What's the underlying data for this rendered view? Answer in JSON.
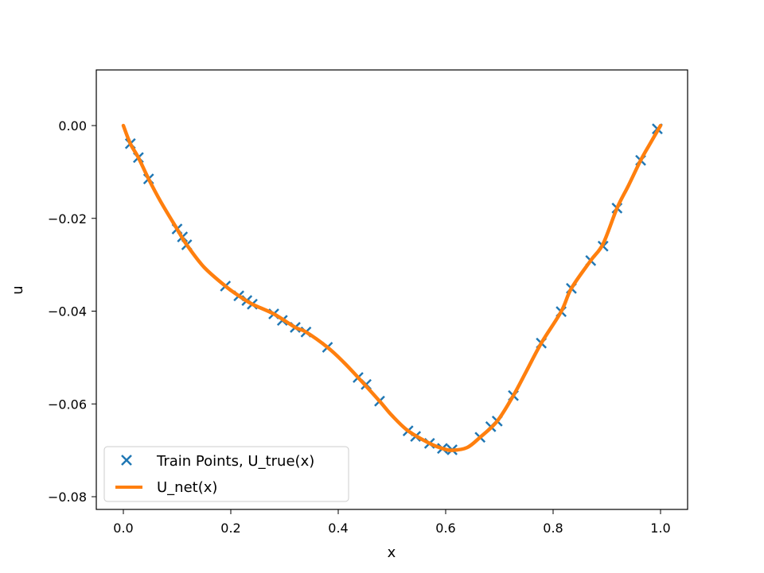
{
  "colors": {
    "train_points": "#1f77b4",
    "net_line": "#ff7f0e",
    "axes": "#000000",
    "legend_border": "#cccccc"
  },
  "chart_data": {
    "type": "line",
    "title": "",
    "xlabel": "x",
    "ylabel": "u",
    "xlim": [
      -0.05,
      1.05
    ],
    "ylim": [
      -0.0827,
      0.0121
    ],
    "grid": false,
    "legend_position": "lower left",
    "x_ticks": [
      "0.0",
      "0.2",
      "0.4",
      "0.6",
      "0.8",
      "1.0"
    ],
    "x_tick_values": [
      0.0,
      0.2,
      0.4,
      0.6,
      0.8,
      1.0
    ],
    "y_ticks": [
      "0.00",
      "−0.02",
      "−0.04",
      "−0.06",
      "−0.08"
    ],
    "y_tick_values": [
      0.0,
      -0.02,
      -0.04,
      -0.06,
      -0.08
    ],
    "legend": [
      {
        "label": "Train Points, U_true(x)",
        "marker": "x",
        "color": "#1f77b4"
      },
      {
        "label": "U_net(x)",
        "marker": "line",
        "color": "#ff7f0e"
      }
    ],
    "series": [
      {
        "name": "Train Points, U_true(x)",
        "type": "scatter",
        "marker": "x",
        "x": [
          0.013,
          0.028,
          0.047,
          0.1,
          0.11,
          0.118,
          0.19,
          0.215,
          0.23,
          0.24,
          0.28,
          0.296,
          0.32,
          0.34,
          0.38,
          0.437,
          0.452,
          0.477,
          0.53,
          0.544,
          0.57,
          0.594,
          0.612,
          0.664,
          0.684,
          0.696,
          0.726,
          0.778,
          0.815,
          0.834,
          0.87,
          0.893,
          0.919,
          0.963,
          0.994
        ],
        "y": [
          -0.0039,
          -0.0069,
          -0.0115,
          -0.0223,
          -0.024,
          -0.0257,
          -0.0346,
          -0.0367,
          -0.0377,
          -0.0385,
          -0.0406,
          -0.042,
          -0.0435,
          -0.0445,
          -0.0478,
          -0.0543,
          -0.0558,
          -0.0594,
          -0.0658,
          -0.067,
          -0.0685,
          -0.0696,
          -0.0699,
          -0.0672,
          -0.0649,
          -0.0637,
          -0.0582,
          -0.0469,
          -0.0401,
          -0.0351,
          -0.0291,
          -0.026,
          -0.0178,
          -0.0075,
          -0.0007
        ]
      },
      {
        "name": "U_net(x)",
        "type": "line",
        "x": [
          0.0,
          0.013,
          0.028,
          0.047,
          0.07,
          0.1,
          0.118,
          0.15,
          0.19,
          0.215,
          0.24,
          0.28,
          0.32,
          0.34,
          0.38,
          0.41,
          0.437,
          0.477,
          0.5,
          0.53,
          0.57,
          0.594,
          0.612,
          0.64,
          0.664,
          0.696,
          0.726,
          0.75,
          0.778,
          0.815,
          0.834,
          0.87,
          0.893,
          0.919,
          0.94,
          0.963,
          0.98,
          1.0
        ],
        "y": [
          0.0,
          -0.0039,
          -0.0069,
          -0.0115,
          -0.0165,
          -0.0223,
          -0.0257,
          -0.0305,
          -0.0346,
          -0.0367,
          -0.0385,
          -0.0406,
          -0.0435,
          -0.0445,
          -0.0478,
          -0.051,
          -0.0543,
          -0.0594,
          -0.0625,
          -0.0658,
          -0.0685,
          -0.0696,
          -0.07,
          -0.0694,
          -0.0672,
          -0.0637,
          -0.0582,
          -0.053,
          -0.0469,
          -0.0401,
          -0.0351,
          -0.0291,
          -0.0255,
          -0.0178,
          -0.013,
          -0.0075,
          -0.004,
          0.0
        ]
      }
    ]
  }
}
